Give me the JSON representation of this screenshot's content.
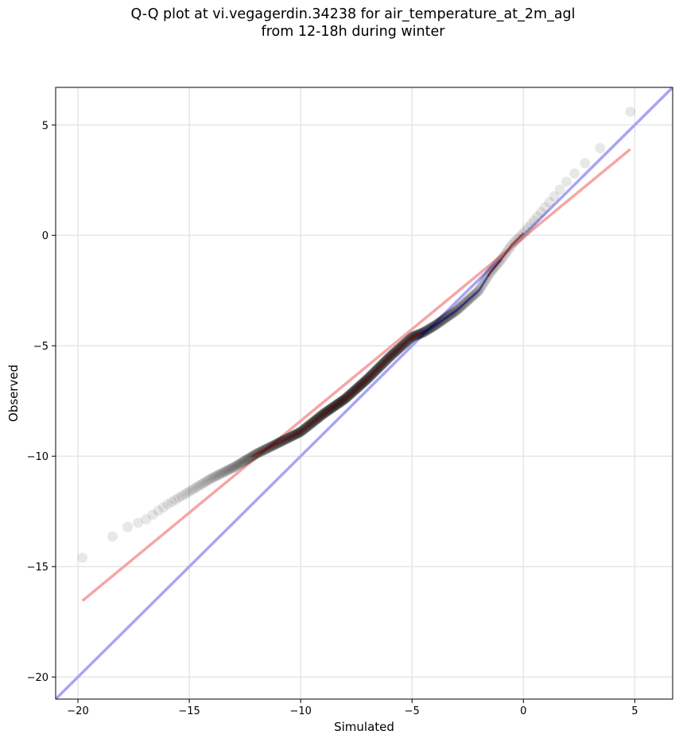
{
  "chart_data": {
    "type": "scatter",
    "title_lines": [
      "Q-Q plot at vi.vegagerdin.34238 for air_temperature_at_2m_agl",
      "from 12-18h during winter"
    ],
    "xlabel": "Simulated",
    "ylabel": "Observed",
    "xlim": [
      -21,
      6.7
    ],
    "ylim": [
      -21,
      6.7
    ],
    "xticks": [
      -20,
      -15,
      -10,
      -5,
      0,
      5
    ],
    "yticks": [
      -20,
      -15,
      -10,
      -5,
      0,
      5
    ],
    "xtick_labels": [
      "−20",
      "−15",
      "−10",
      "−5",
      "0",
      "5"
    ],
    "ytick_labels": [
      "−20",
      "−15",
      "−10",
      "−5",
      "0",
      "5"
    ],
    "grid": true,
    "quantile_knots": {
      "x": [
        -19.8,
        -19.3,
        -18.8,
        -18.0,
        -17.0,
        -16.0,
        -15.0,
        -14.0,
        -13.0,
        -12.5,
        -12.0,
        -11.0,
        -10.0,
        -9.0,
        -8.0,
        -7.0,
        -6.0,
        -5.0,
        -4.5,
        -4.0,
        -3.0,
        -2.0,
        -1.5,
        -1.0,
        -0.5,
        0.0,
        0.5,
        1.0,
        1.5,
        2.0,
        2.5,
        3.0,
        3.5,
        4.0,
        4.4,
        4.8
      ],
      "y": [
        -14.6,
        -14.0,
        -13.9,
        -13.3,
        -12.9,
        -12.2,
        -11.6,
        -11.0,
        -10.5,
        -10.2,
        -9.9,
        -9.4,
        -8.9,
        -8.1,
        -7.4,
        -6.5,
        -5.5,
        -4.6,
        -4.4,
        -4.1,
        -3.4,
        -2.5,
        -1.7,
        -1.1,
        -0.4,
        0.1,
        0.7,
        1.3,
        1.9,
        2.5,
        3.0,
        3.5,
        4.0,
        4.5,
        5.0,
        5.6
      ]
    },
    "point_count": 520,
    "point_color": "#000000",
    "reference_lines": [
      {
        "label": "identity",
        "color": "#a6a6f5",
        "x": [
          -21,
          6.7
        ],
        "y": [
          -21,
          6.7
        ]
      },
      {
        "label": "fit",
        "color": "#f5a6a6",
        "x": [
          -19.8,
          4.8
        ],
        "y": [
          -16.55,
          3.9
        ]
      }
    ],
    "highlight_segments": [
      {
        "color": "#8b0000",
        "x_range": [
          -12.2,
          -4.6
        ]
      },
      {
        "color": "#00008b",
        "x_range": [
          -4.6,
          -1.0
        ]
      },
      {
        "color": "#8b0000",
        "x_range": [
          -1.6,
          0.0
        ]
      }
    ]
  }
}
